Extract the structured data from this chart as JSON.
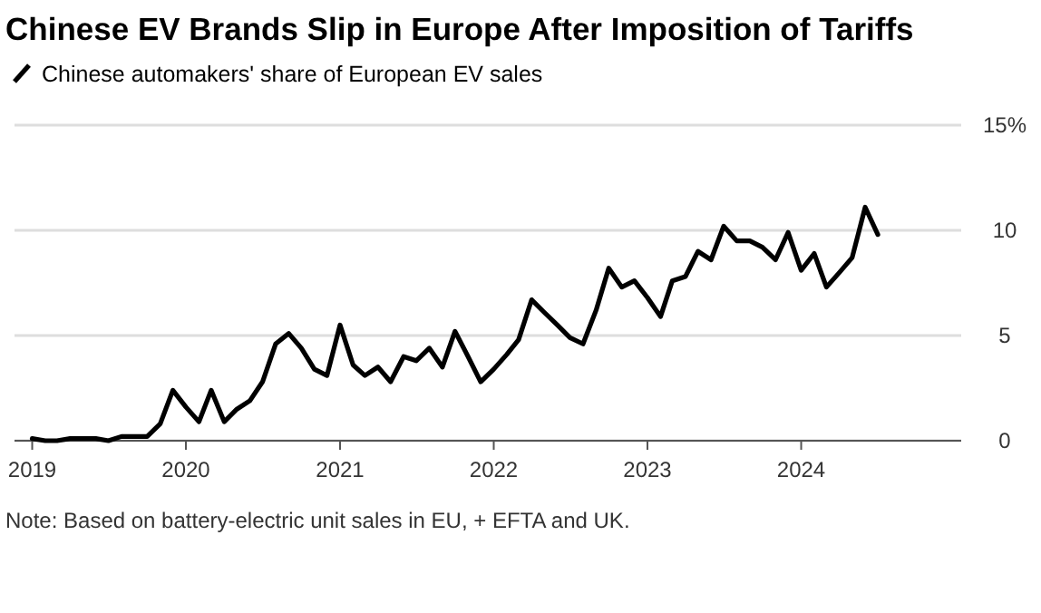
{
  "chart_data": {
    "type": "line",
    "title": "Chinese EV Brands Slip in Europe After Imposition of Tariffs",
    "annotations": [
      "Note: Based on battery-electric unit sales in EU, + EFTA and UK."
    ],
    "x": [
      "2019-01",
      "2019-02",
      "2019-03",
      "2019-04",
      "2019-05",
      "2019-06",
      "2019-07",
      "2019-08",
      "2019-09",
      "2019-10",
      "2019-11",
      "2019-12",
      "2020-01",
      "2020-02",
      "2020-03",
      "2020-04",
      "2020-05",
      "2020-06",
      "2020-07",
      "2020-08",
      "2020-09",
      "2020-10",
      "2020-11",
      "2020-12",
      "2021-01",
      "2021-02",
      "2021-03",
      "2021-04",
      "2021-05",
      "2021-06",
      "2021-07",
      "2021-08",
      "2021-09",
      "2021-10",
      "2021-11",
      "2021-12",
      "2022-01",
      "2022-02",
      "2022-03",
      "2022-04",
      "2022-05",
      "2022-06",
      "2022-07",
      "2022-08",
      "2022-09",
      "2022-10",
      "2022-11",
      "2022-12",
      "2023-01",
      "2023-02",
      "2023-03",
      "2023-04",
      "2023-05",
      "2023-06",
      "2023-07",
      "2023-08",
      "2023-09",
      "2023-10",
      "2023-11",
      "2023-12",
      "2024-01",
      "2024-02",
      "2024-03",
      "2024-04",
      "2024-05",
      "2024-06",
      "2024-07"
    ],
    "series": [
      {
        "name": "Chinese automakers' share of European EV sales",
        "color": "#000000",
        "values": [
          0.1,
          0,
          0,
          0.1,
          0.1,
          0.1,
          0,
          0.2,
          0.2,
          0.2,
          0.8,
          2.4,
          1.6,
          0.9,
          2.4,
          0.9,
          1.5,
          1.9,
          2.8,
          4.6,
          5.1,
          4.4,
          3.4,
          3.1,
          5.5,
          3.6,
          3.1,
          3.5,
          2.8,
          4.0,
          3.8,
          4.4,
          3.5,
          5.2,
          4.0,
          2.8,
          3.4,
          4.1,
          4.8,
          6.7,
          6.1,
          5.5,
          4.9,
          4.6,
          6.2,
          8.2,
          7.3,
          7.6,
          6.8,
          5.9,
          7.6,
          7.8,
          9.0,
          8.6,
          10.2,
          9.5,
          9.5,
          9.2,
          8.6,
          9.9,
          8.1,
          8.9,
          7.3,
          8.0,
          8.7,
          11.1,
          9.8
        ]
      }
    ],
    "xlim": [
      "2018-11-20",
      "2025-01-15"
    ],
    "xticks": [
      {
        "value": "2019-01",
        "label": "2019"
      },
      {
        "value": "2020-01",
        "label": "2020"
      },
      {
        "value": "2021-01",
        "label": "2021"
      },
      {
        "value": "2022-01",
        "label": "2022"
      },
      {
        "value": "2023-01",
        "label": "2023"
      },
      {
        "value": "2024-01",
        "label": "2024"
      }
    ],
    "ylim": [
      0,
      15
    ],
    "yticks": [
      0,
      5,
      10,
      {
        "value": 15,
        "label": "15%"
      }
    ],
    "grid": "y",
    "legend": "top left",
    "marker": "none",
    "line_style": "solid"
  }
}
